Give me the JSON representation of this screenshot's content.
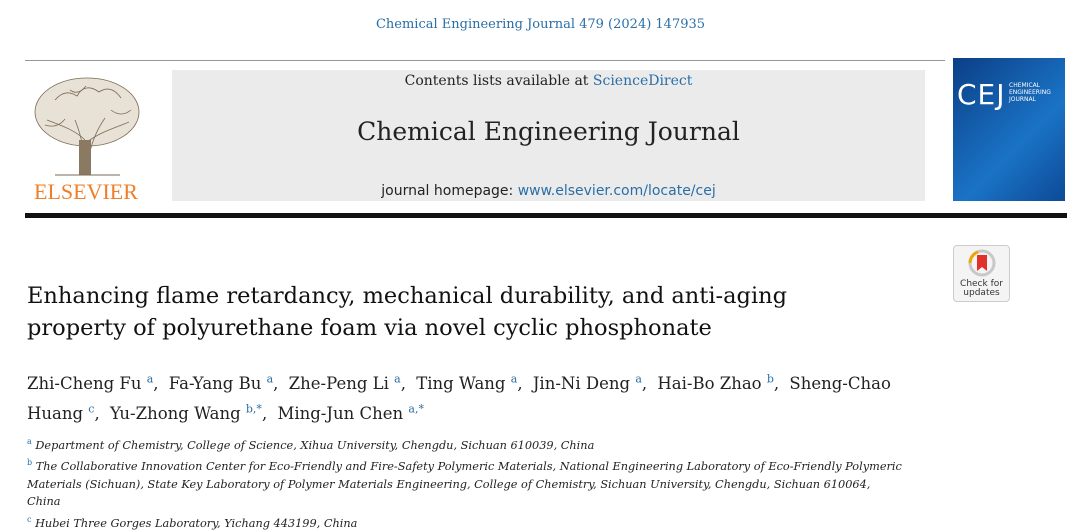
{
  "header": {
    "citation": "Chemical Engineering Journal 479 (2024) 147935",
    "contents_prefix": "Contents lists available at",
    "contents_link": "ScienceDirect",
    "journal_title": "Chemical Engineering Journal",
    "homepage_prefix": "journal homepage:",
    "homepage_link": "www.elsevier.com/locate/cej",
    "publisher": "ELSEVIER",
    "cover_abbrev": "CEJ",
    "cover_title": "CHEMICAL ENGINEERING JOURNAL",
    "check_updates": "Check for updates"
  },
  "article": {
    "title": "Enhancing flame retardancy, mechanical durability, and anti-aging property of polyurethane foam via novel cyclic phosphonate",
    "authors": [
      {
        "name": "Zhi-Cheng Fu",
        "aff": "a"
      },
      {
        "name": "Fa-Yang Bu",
        "aff": "a"
      },
      {
        "name": "Zhe-Peng Li",
        "aff": "a"
      },
      {
        "name": "Ting Wang",
        "aff": "a"
      },
      {
        "name": "Jin-Ni Deng",
        "aff": "a"
      },
      {
        "name": "Hai-Bo Zhao",
        "aff": "b"
      },
      {
        "name": "Sheng-Chao Huang",
        "aff": "c"
      },
      {
        "name": "Yu-Zhong Wang",
        "aff": "b,*"
      },
      {
        "name": "Ming-Jun Chen",
        "aff": "a,*"
      }
    ],
    "affiliations": [
      {
        "label": "a",
        "text": "Department of Chemistry, College of Science, Xihua University, Chengdu, Sichuan 610039, China"
      },
      {
        "label": "b",
        "text": "The Collaborative Innovation Center for Eco-Friendly and Fire-Safety Polymeric Materials, National Engineering Laboratory of Eco-Friendly Polymeric Materials (Sichuan), State Key Laboratory of Polymer Materials Engineering, College of Chemistry, Sichuan University, Chengdu, Sichuan 610064, China"
      },
      {
        "label": "c",
        "text": "Hubei Three Gorges Laboratory, Yichang 443199, China"
      }
    ]
  }
}
